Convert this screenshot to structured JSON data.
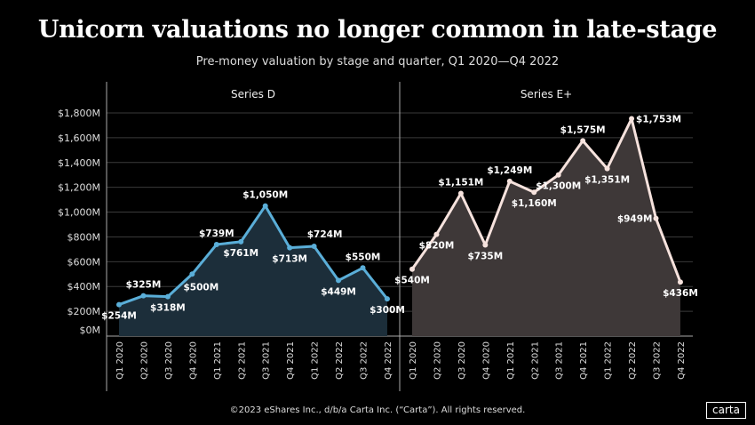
{
  "header": {
    "title": "Unicorn valuations no longer common in late-stage",
    "subtitle": "Pre-money valuation by stage and quarter, Q1 2020—Q4 2022"
  },
  "footer": {
    "copyright": "©2023 eShares Inc., d/b/a Carta Inc. (“Carta”). All rights reserved.",
    "logo": "carta"
  },
  "colors": {
    "background": "#000000",
    "series_d_line": "#5aaed8",
    "series_d_fill": "#1c2e3a",
    "series_e_line": "#f6e2dd",
    "series_e_fill": "#3e3838",
    "grid": "#3a3a3a"
  },
  "chart_data": {
    "type": "area",
    "categories": [
      "Q1 2020",
      "Q2 2020",
      "Q3 2020",
      "Q4 2020",
      "Q1 2021",
      "Q2 2021",
      "Q3 2021",
      "Q4 2021",
      "Q1 2022",
      "Q2 2022",
      "Q3 2022",
      "Q4 2022"
    ],
    "ylim": [
      0,
      1800
    ],
    "yticks": [
      0,
      200,
      400,
      600,
      800,
      1000,
      1200,
      1400,
      1600,
      1800
    ],
    "ytick_labels": [
      "$0M",
      "$200M",
      "$400M",
      "$600M",
      "$800M",
      "$1,000M",
      "$1,200M",
      "$1,400M",
      "$1,600M",
      "$1,800M"
    ],
    "grid": true,
    "panels": [
      {
        "name": "Series D",
        "values": [
          254,
          325,
          318,
          500,
          739,
          761,
          1050,
          713,
          724,
          449,
          550,
          300
        ],
        "labels": [
          "$254M",
          "$325M",
          "$318M",
          "$500M",
          "$739M",
          "$761M",
          "$1,050M",
          "$713M",
          "$724M",
          "$449M",
          "$550M",
          "$300M"
        ]
      },
      {
        "name": "Series E+",
        "values": [
          540,
          820,
          1151,
          735,
          1249,
          1160,
          1300,
          1575,
          1351,
          1753,
          949,
          436
        ],
        "labels": [
          "$540M",
          "$820M",
          "$1,151M",
          "$735M",
          "$1,249M",
          "$1,160M",
          "$1,300M",
          "$1,575M",
          "$1,351M",
          "$1,753M",
          "$949M",
          "$436M"
        ]
      }
    ]
  }
}
